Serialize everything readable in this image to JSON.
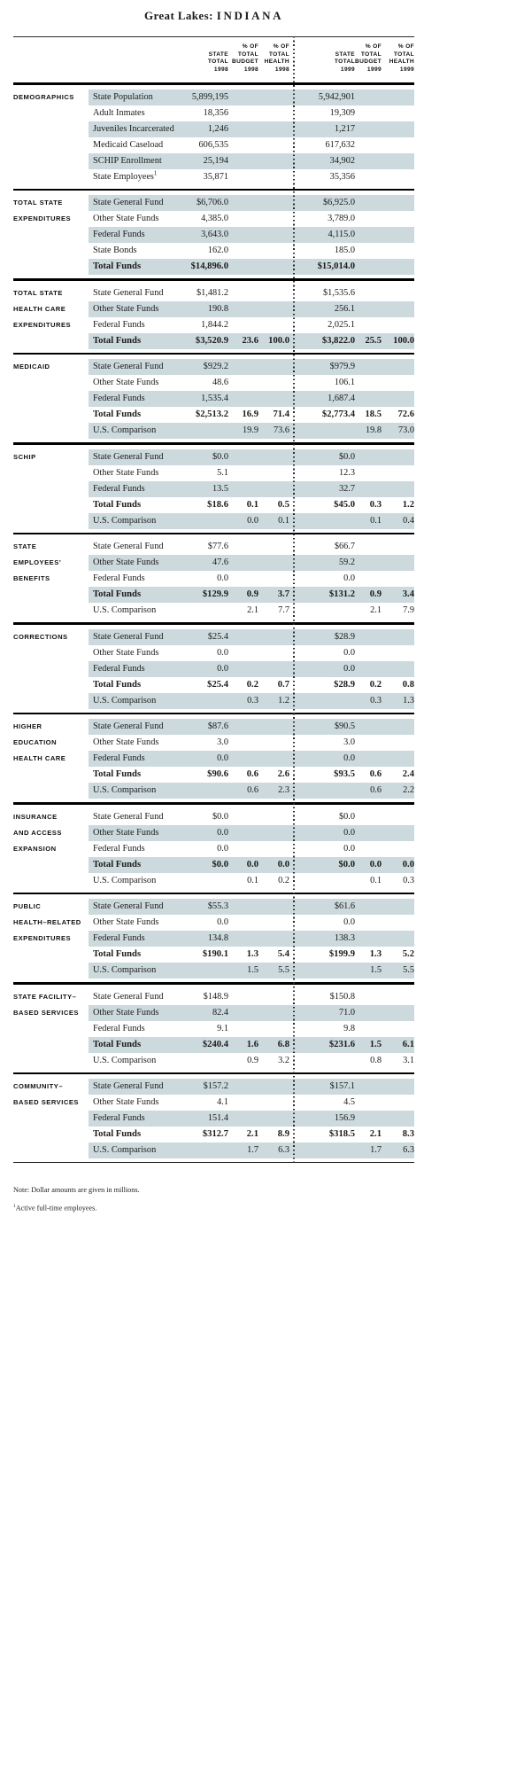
{
  "title": {
    "region": "Great Lakes:",
    "state": "INDIANA"
  },
  "colors": {
    "row_shade": "#ccd9dd",
    "rule": "#000000",
    "text": "#1b1b1b"
  },
  "header": {
    "columns": [
      {
        "lines": [
          "STATE",
          "TOTAL",
          "1998"
        ]
      },
      {
        "lines": [
          "% OF",
          "TOTAL",
          "BUDGET",
          "1998"
        ]
      },
      {
        "lines": [
          "% OF",
          "TOTAL",
          "HEALTH",
          "1998"
        ]
      },
      {
        "lines": [
          "STATE",
          "TOTAL",
          "1999"
        ]
      },
      {
        "lines": [
          "% OF",
          "TOTAL",
          "BUDGET",
          "1999"
        ]
      },
      {
        "lines": [
          "% OF",
          "TOTAL",
          "HEALTH",
          "1999"
        ]
      }
    ]
  },
  "sections": [
    {
      "label_lines": [
        "DEMOGRAPHICS"
      ],
      "start_shaded": true,
      "rows": [
        {
          "label": "State Population",
          "v98": "5,899,195",
          "v99": "5,942,901"
        },
        {
          "label": "Adult Inmates",
          "v98": "18,356",
          "v99": "19,309"
        },
        {
          "label": "Juveniles Incarcerated",
          "v98": "1,246",
          "v99": "1,217"
        },
        {
          "label": "Medicaid Caseload",
          "v98": "606,535",
          "v99": "617,632"
        },
        {
          "label": "SCHIP Enrollment",
          "v98": "25,194",
          "v99": "34,902"
        },
        {
          "label": "State Employees",
          "sup": "1",
          "v98": "35,871",
          "v99": "35,356"
        }
      ]
    },
    {
      "label_lines": [
        "TOTAL STATE",
        "EXPENDITURES"
      ],
      "start_shaded": true,
      "rows": [
        {
          "label": "State General Fund",
          "v98": "$6,706.0",
          "v99": "$6,925.0"
        },
        {
          "label": "Other State Funds",
          "v98": "4,385.0",
          "v99": "3,789.0"
        },
        {
          "label": "Federal Funds",
          "v98": "3,643.0",
          "v99": "4,115.0"
        },
        {
          "label": "State Bonds",
          "v98": "162.0",
          "v99": "185.0"
        },
        {
          "label": "Total Funds",
          "bold": true,
          "v98": "$14,896.0",
          "v99": "$15,014.0"
        }
      ]
    },
    {
      "label_lines": [
        "TOTAL STATE",
        "HEALTH CARE",
        "EXPENDITURES"
      ],
      "start_shaded": false,
      "rows": [
        {
          "label": "State General Fund",
          "v98": "$1,481.2",
          "v99": "$1,535.6"
        },
        {
          "label": "Other State Funds",
          "v98": "190.8",
          "v99": "256.1"
        },
        {
          "label": "Federal Funds",
          "v98": "1,844.2",
          "v99": "2,025.1"
        },
        {
          "label": "Total Funds",
          "bold": true,
          "v98": "$3,520.9",
          "b98": "23.6",
          "h98": "100.0",
          "v99": "$3,822.0",
          "b99": "25.5",
          "h99": "100.0"
        }
      ]
    },
    {
      "label_lines": [
        "MEDICAID"
      ],
      "start_shaded": true,
      "rows": [
        {
          "label": "State General Fund",
          "v98": "$929.2",
          "v99": "$979.9"
        },
        {
          "label": "Other State Funds",
          "v98": "48.6",
          "v99": "106.1"
        },
        {
          "label": "Federal Funds",
          "v98": "1,535.4",
          "v99": "1,687.4"
        },
        {
          "label": "Total Funds",
          "bold": true,
          "v98": "$2,513.2",
          "b98": "16.9",
          "h98": "71.4",
          "v99": "$2,773.4",
          "b99": "18.5",
          "h99": "72.6"
        },
        {
          "label": "U.S. Comparison",
          "b98": "19.9",
          "h98": "73.6",
          "b99": "19.8",
          "h99": "73.0"
        }
      ]
    },
    {
      "label_lines": [
        "SCHIP"
      ],
      "start_shaded": true,
      "rows": [
        {
          "label": "State General Fund",
          "v98": "$0.0",
          "v99": "$0.0"
        },
        {
          "label": "Other State Funds",
          "v98": "5.1",
          "v99": "12.3"
        },
        {
          "label": "Federal Funds",
          "v98": "13.5",
          "v99": "32.7"
        },
        {
          "label": "Total Funds",
          "bold": true,
          "v98": "$18.6",
          "b98": "0.1",
          "h98": "0.5",
          "v99": "$45.0",
          "b99": "0.3",
          "h99": "1.2"
        },
        {
          "label": "U.S. Comparison",
          "b98": "0.0",
          "h98": "0.1",
          "b99": "0.1",
          "h99": "0.4"
        }
      ]
    },
    {
      "label_lines": [
        "STATE",
        "EMPLOYEES’",
        "BENEFITS"
      ],
      "start_shaded": false,
      "rows": [
        {
          "label": "State General Fund",
          "v98": "$77.6",
          "v99": "$66.7"
        },
        {
          "label": "Other State Funds",
          "v98": "47.6",
          "v99": "59.2"
        },
        {
          "label": "Federal Funds",
          "v98": "0.0",
          "v99": "0.0"
        },
        {
          "label": "Total Funds",
          "bold": true,
          "v98": "$129.9",
          "b98": "0.9",
          "h98": "3.7",
          "v99": "$131.2",
          "b99": "0.9",
          "h99": "3.4"
        },
        {
          "label": "U.S. Comparison",
          "b98": "2.1",
          "h98": "7.7",
          "b99": "2.1",
          "h99": "7.9"
        }
      ]
    },
    {
      "label_lines": [
        "CORRECTIONS"
      ],
      "start_shaded": true,
      "rows": [
        {
          "label": "State General Fund",
          "v98": "$25.4",
          "v99": "$28.9"
        },
        {
          "label": "Other State Funds",
          "v98": "0.0",
          "v99": "0.0"
        },
        {
          "label": "Federal Funds",
          "v98": "0.0",
          "v99": "0.0"
        },
        {
          "label": "Total Funds",
          "bold": true,
          "v98": "$25.4",
          "b98": "0.2",
          "h98": "0.7",
          "v99": "$28.9",
          "b99": "0.2",
          "h99": "0.8"
        },
        {
          "label": "U.S. Comparison",
          "b98": "0.3",
          "h98": "1.2",
          "b99": "0.3",
          "h99": "1.3"
        }
      ]
    },
    {
      "label_lines": [
        "HIGHER",
        "EDUCATION",
        "HEALTH CARE"
      ],
      "start_shaded": true,
      "rows": [
        {
          "label": "State General Fund",
          "v98": "$87.6",
          "v99": "$90.5"
        },
        {
          "label": "Other State Funds",
          "v98": "3.0",
          "v99": "3.0"
        },
        {
          "label": "Federal Funds",
          "v98": "0.0",
          "v99": "0.0"
        },
        {
          "label": "Total Funds",
          "bold": true,
          "v98": "$90.6",
          "b98": "0.6",
          "h98": "2.6",
          "v99": "$93.5",
          "b99": "0.6",
          "h99": "2.4"
        },
        {
          "label": "U.S. Comparison",
          "b98": "0.6",
          "h98": "2.3",
          "b99": "0.6",
          "h99": "2.2"
        }
      ]
    },
    {
      "label_lines": [
        "INSURANCE",
        "AND ACCESS",
        "EXPANSION"
      ],
      "start_shaded": false,
      "rows": [
        {
          "label": "State General Fund",
          "v98": "$0.0",
          "v99": "$0.0"
        },
        {
          "label": "Other State Funds",
          "v98": "0.0",
          "v99": "0.0"
        },
        {
          "label": "Federal Funds",
          "v98": "0.0",
          "v99": "0.0"
        },
        {
          "label": "Total Funds",
          "bold": true,
          "v98": "$0.0",
          "b98": "0.0",
          "h98": "0.0",
          "v99": "$0.0",
          "b99": "0.0",
          "h99": "0.0"
        },
        {
          "label": "U.S. Comparison",
          "b98": "0.1",
          "h98": "0.2",
          "b99": "0.1",
          "h99": "0.3"
        }
      ]
    },
    {
      "label_lines": [
        "PUBLIC",
        "HEALTH–RELATED",
        "EXPENDITURES"
      ],
      "start_shaded": true,
      "rows": [
        {
          "label": "State General Fund",
          "v98": "$55.3",
          "v99": "$61.6"
        },
        {
          "label": "Other State Funds",
          "v98": "0.0",
          "v99": "0.0"
        },
        {
          "label": "Federal Funds",
          "v98": "134.8",
          "v99": "138.3"
        },
        {
          "label": "Total Funds",
          "bold": true,
          "v98": "$190.1",
          "b98": "1.3",
          "h98": "5.4",
          "v99": "$199.9",
          "b99": "1.3",
          "h99": "5.2"
        },
        {
          "label": "U.S. Comparison",
          "b98": "1.5",
          "h98": "5.5",
          "b99": "1.5",
          "h99": "5.5"
        }
      ]
    },
    {
      "label_lines": [
        "STATE FACILITY–",
        "BASED SERVICES"
      ],
      "start_shaded": false,
      "rows": [
        {
          "label": "State General Fund",
          "v98": "$148.9",
          "v99": "$150.8"
        },
        {
          "label": "Other State Funds",
          "v98": "82.4",
          "v99": "71.0"
        },
        {
          "label": "Federal Funds",
          "v98": "9.1",
          "v99": "9.8"
        },
        {
          "label": "Total Funds",
          "bold": true,
          "v98": "$240.4",
          "b98": "1.6",
          "h98": "6.8",
          "v99": "$231.6",
          "b99": "1.5",
          "h99": "6.1"
        },
        {
          "label": "U.S. Comparison",
          "b98": "0.9",
          "h98": "3.2",
          "b99": "0.8",
          "h99": "3.1"
        }
      ]
    },
    {
      "label_lines": [
        "COMMUNITY–",
        "BASED SERVICES"
      ],
      "start_shaded": true,
      "rows": [
        {
          "label": "State General Fund",
          "v98": "$157.2",
          "v99": "$157.1"
        },
        {
          "label": "Other State Funds",
          "v98": "4.1",
          "v99": "4.5"
        },
        {
          "label": "Federal Funds",
          "v98": "151.4",
          "v99": "156.9"
        },
        {
          "label": "Total Funds",
          "bold": true,
          "v98": "$312.7",
          "b98": "2.1",
          "h98": "8.9",
          "v99": "$318.5",
          "b99": "2.1",
          "h99": "8.3"
        },
        {
          "label": "U.S. Comparison",
          "b98": "1.7",
          "h98": "6.3",
          "b99": "1.7",
          "h99": "6.3"
        }
      ]
    }
  ],
  "footnotes": {
    "note": "Note: Dollar amounts are given in millions.",
    "employee_sup": "1",
    "employee_text": "Active full-time employees."
  }
}
